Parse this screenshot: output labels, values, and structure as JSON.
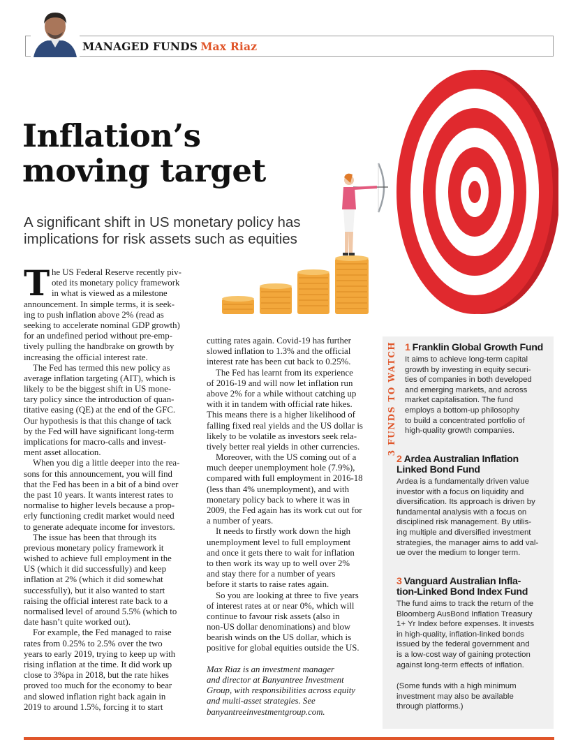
{
  "header": {
    "section": "MANAGED FUNDS",
    "author": "Max Riaz"
  },
  "headline": [
    "Inflation’s",
    "moving target"
  ],
  "standfirst": [
    "A significant shift in US monetary policy has",
    "implications for risk assets such as equities"
  ],
  "body": {
    "dropcap": "T",
    "col1": [
      {
        "t": "he US Federal Reserve recently piv-",
        "drop": true
      },
      {
        "t": "oted its monetary policy framework",
        "drop": true
      },
      {
        "t": "in what is viewed as a milestone",
        "drop": true
      },
      {
        "t": "announcement. In simple terms, it is seek-"
      },
      {
        "t": "ing to push inflation above 2% (read as"
      },
      {
        "t": "seeking to accelerate nominal GDP growth)"
      },
      {
        "t": "for an undefined period without pre-emp-"
      },
      {
        "t": "tively pulling the handbrake on growth by"
      },
      {
        "t": "increasing the official interest rate."
      },
      {
        "t": "The Fed has termed this new policy as",
        "ind": true
      },
      {
        "t": "average inflation targeting (AIT), which is"
      },
      {
        "t": "likely to be the biggest shift in US mone-"
      },
      {
        "t": "tary policy since the introduction of quan-"
      },
      {
        "t": "titative easing (QE) at the end of the GFC."
      },
      {
        "t": "Our hypothesis is that this change of tack"
      },
      {
        "t": "by the Fed will have significant long-term"
      },
      {
        "t": "implications for macro-calls and invest-"
      },
      {
        "t": "ment asset allocation."
      },
      {
        "t": "When you dig a little deeper into the rea-",
        "ind": true
      },
      {
        "t": "sons for this announcement, you will find"
      },
      {
        "t": "that the Fed has been in a bit of a bind over"
      },
      {
        "t": "the past 10 years. It wants interest rates to"
      },
      {
        "t": "normalise to higher levels because a prop-"
      },
      {
        "t": "erly functioning credit market would need"
      },
      {
        "t": "to generate adequate income for investors."
      },
      {
        "t": "The issue has been that through its",
        "ind": true
      },
      {
        "t": "previous monetary policy framework it"
      },
      {
        "t": "wished to achieve full employment in the"
      },
      {
        "t": "US (which it did successfully) and keep"
      },
      {
        "t": "inflation at 2% (which it did somewhat"
      },
      {
        "t": "successfully), but it also wanted to start"
      },
      {
        "t": "raising the official interest rate back to a"
      },
      {
        "t": "normalised level of around 5.5% (which to"
      },
      {
        "t": "date hasn’t quite worked out)."
      },
      {
        "t": "For example, the Fed managed to raise",
        "ind": true
      },
      {
        "t": "rates from 0.25% to 2.5% over the two"
      },
      {
        "t": "years to early 2019, trying to keep up with"
      },
      {
        "t": "rising inflation at the time. It did work up"
      },
      {
        "t": "close to 3%pa in 2018, but the rate hikes"
      },
      {
        "t": "proved too much for the economy to bear"
      },
      {
        "t": "and slowed inflation right back again in"
      },
      {
        "t": "2019 to around 1.5%, forcing it to start"
      }
    ],
    "col2": [
      {
        "t": "cutting rates again. Covid-19 has further"
      },
      {
        "t": "slowed inflation to 1.3% and the official"
      },
      {
        "t": "interest rate has been cut back to 0.25%."
      },
      {
        "t": "The Fed has learnt from its experience",
        "ind": true
      },
      {
        "t": "of 2016-19 and will now let inflation run"
      },
      {
        "t": "above 2% for a while without catching up"
      },
      {
        "t": "with it in tandem with official rate hikes."
      },
      {
        "t": "This means there is a higher likelihood of"
      },
      {
        "t": "falling fixed real yields and the US dollar is"
      },
      {
        "t": "likely to be volatile as investors seek rela-"
      },
      {
        "t": "tively better real yields in other currencies."
      },
      {
        "t": "Moreover, with the US coming out of a",
        "ind": true
      },
      {
        "t": "much deeper unemployment hole (7.9%),"
      },
      {
        "t": "compared with full employment in 2016-18"
      },
      {
        "t": "(less than 4% unemployment), and with"
      },
      {
        "t": "monetary policy back to where it was in"
      },
      {
        "t": "2009, the Fed again has its work cut out for"
      },
      {
        "t": "a number of years."
      },
      {
        "t": "It needs to firstly work down the high",
        "ind": true
      },
      {
        "t": "unemployment level to full employment"
      },
      {
        "t": "and once it gets there to wait for inflation"
      },
      {
        "t": "to then work its way up to well over 2%"
      },
      {
        "t": "and stay there for a number of years"
      },
      {
        "t": "before it starts to raise rates again."
      },
      {
        "t": "So you are looking at three to five years",
        "ind": true
      },
      {
        "t": "of interest rates at or near 0%, which will"
      },
      {
        "t": "continue to favour risk assets (also in"
      },
      {
        "t": "non-US dollar denominations) and blow"
      },
      {
        "t": "bearish winds on the US dollar, which is"
      },
      {
        "t": "positive for global equities outside the US."
      }
    ],
    "bio": [
      "Max Riaz is an investment manager",
      "and director at Banyantree Investment",
      "Group, with responsibilities across equity",
      "and multi-asset strategies. See",
      "banyantreeinvestmentgroup.com."
    ]
  },
  "funds": {
    "side_label": "3 FUNDS TO WATCH",
    "items": [
      {
        "num": "1",
        "title": [
          "Franklin Global Growth Fund"
        ],
        "body": [
          "It aims to achieve long-term capital",
          "growth by investing in equity securi-",
          "ties of companies in both developed",
          "and emerging markets, and across",
          "market capitalisation. The fund",
          "employs a bottom-up philosophy",
          "to build a concentrated portfolio of",
          "high-quality growth companies."
        ]
      },
      {
        "num": "2",
        "title": [
          "Ardea Australian Inflation",
          "Linked Bond Fund"
        ],
        "body": [
          "Ardea is a fundamentally driven value",
          "investor with a focus on liquidity and",
          "diversification. Its approach is driven by",
          "fundamental analysis with a focus on",
          "disciplined risk management. By utilis-",
          "ing multiple and diversified investment",
          "strategies, the manager aims to add val-",
          "ue over the medium to longer term."
        ]
      },
      {
        "num": "3",
        "title": [
          "Vanguard Australian Infla-",
          "tion-Linked Bond Index Fund"
        ],
        "body": [
          "The fund aims to track the return of the",
          "Bloomberg AusBond Inflation Treasury",
          "1+ Yr Index before expenses. It invests",
          "in high-quality, inflation-linked bonds",
          "issued by the federal government and",
          "is a low-cost way of gaining protection",
          "against long-term effects of inflation."
        ]
      }
    ],
    "footnote": [
      "(Some funds with a high minimum",
      "investment may also be available",
      "through platforms.)"
    ]
  },
  "colors": {
    "accent": "#e0562a",
    "target_red": "#d9262b",
    "coin_gold": "#f2a73b",
    "box_grey": "#f0f0f0"
  },
  "icons": {
    "avatar": "author-photo",
    "illustration": "archer-target-coins"
  }
}
